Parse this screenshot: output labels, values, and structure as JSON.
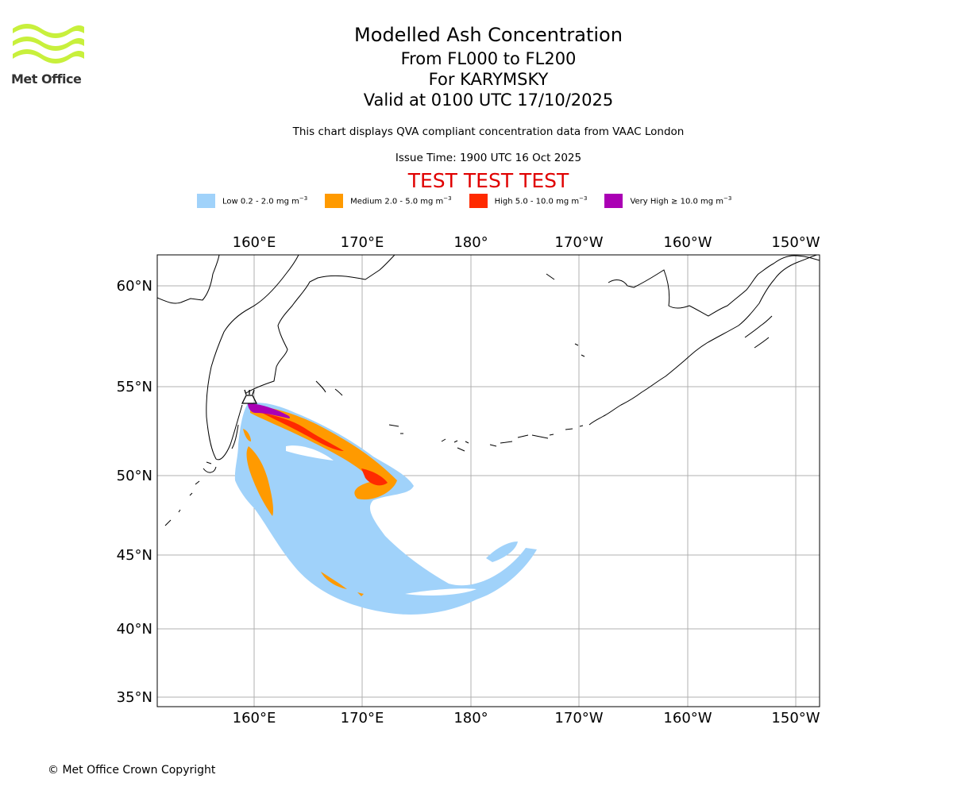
{
  "logo": {
    "text": "Met Office",
    "icon": "met-office-wave-logo",
    "color": "#c8f03c"
  },
  "title": {
    "line1": "Modelled Ash Concentration",
    "line2": "From FL000 to FL200",
    "line3": "For KARYMSKY",
    "line4": "Valid at 0100 UTC 17/10/2025"
  },
  "subtitle": "This chart displays QVA compliant concentration data from VAAC London",
  "issue_time": "Issue Time: 1900 UTC 16 Oct 2025",
  "test_banner": {
    "text": "TEST TEST TEST",
    "color": "#e00000"
  },
  "legend": [
    {
      "label": "Low 0.2 - 2.0 mg m",
      "sup": "−3",
      "color": "#a0d2fa"
    },
    {
      "label": "Medium 2.0 - 5.0 mg m",
      "sup": "−3",
      "color": "#ff9a00"
    },
    {
      "label": "High 5.0 - 10.0 mg m",
      "sup": "−3",
      "color": "#ff2a00"
    },
    {
      "label": "Very High  ≥  10.0 mg m",
      "sup": "−3",
      "color": "#aa00b4"
    }
  ],
  "map": {
    "lon_labels": [
      "160°E",
      "170°E",
      "180°",
      "170°W",
      "160°W",
      "150°W"
    ],
    "lat_labels": [
      "60°N",
      "55°N",
      "50°N",
      "45°N",
      "40°N",
      "35°N"
    ],
    "volcano": "KARYMSKY",
    "volcano_icon": "volcano-icon"
  },
  "copyright": "© Met Office Crown Copyright"
}
